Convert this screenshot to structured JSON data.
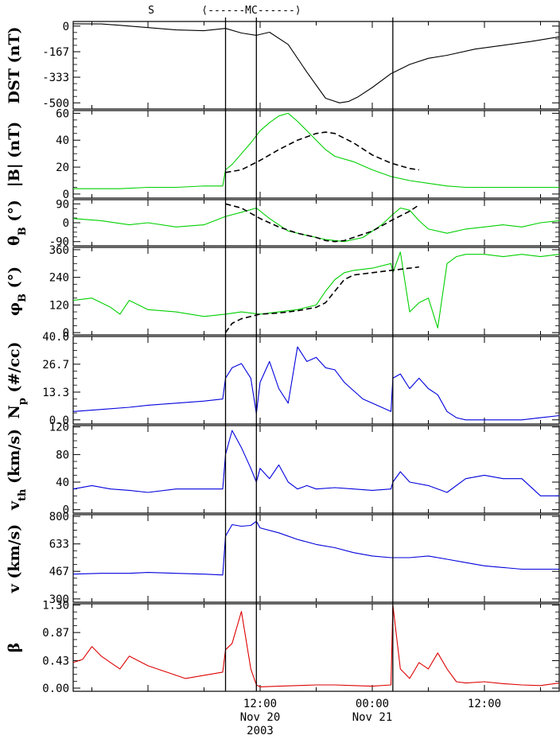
{
  "header": {
    "shock_label": "S",
    "mc_label": "⟨------MC------⟩"
  },
  "x_axis": {
    "tick_labels": [
      {
        "time_h": 12,
        "lines": [
          "12:00",
          "Nov 20",
          "2003"
        ]
      },
      {
        "time_h": 24,
        "lines": [
          "00:00",
          "Nov 21"
        ]
      },
      {
        "time_h": 36,
        "lines": [
          "12:00"
        ]
      }
    ],
    "range_h": [
      -8,
      44
    ],
    "event_lines_h": [
      8.3,
      11.6,
      26.2
    ]
  },
  "chart_data": [
    {
      "type": "line",
      "ylabel": "DST (nT)",
      "ylim": [
        -540,
        30
      ],
      "ytick_labels": [
        "0",
        "-167",
        "-333",
        "-500"
      ],
      "ytick_values": [
        0,
        -167,
        -333,
        -500
      ],
      "series": [
        {
          "color": "#000000",
          "style": "solid",
          "x": [
            -8,
            -5,
            -3,
            0,
            3,
            6,
            8.3,
            10,
            11.6,
            13,
            15,
            17,
            19,
            20.5,
            21.5,
            22.5,
            24,
            26,
            28,
            30,
            32,
            35,
            38,
            41,
            44
          ],
          "y": [
            15,
            14,
            5,
            -10,
            -25,
            -30,
            -15,
            -45,
            -60,
            -40,
            -120,
            -300,
            -470,
            -500,
            -490,
            -460,
            -400,
            -310,
            -250,
            -210,
            -190,
            -150,
            -125,
            -100,
            -70
          ]
        }
      ]
    },
    {
      "type": "line",
      "ylabel": "|B| (nT)",
      "ylim": [
        -3,
        62
      ],
      "ytick_labels": [
        "0",
        "20",
        "40",
        "60"
      ],
      "ytick_values": [
        0,
        20,
        40,
        60
      ],
      "series": [
        {
          "color": "#00d000",
          "style": "solid",
          "x": [
            -8,
            -3,
            0,
            3,
            6,
            8,
            8.3,
            9,
            10,
            11,
            12,
            13,
            14,
            15,
            16,
            17,
            18,
            19,
            20,
            22,
            24,
            26,
            28,
            30,
            32,
            34,
            36,
            38,
            40,
            42,
            44
          ],
          "y": [
            4,
            4,
            5,
            5,
            6,
            6,
            18,
            22,
            30,
            38,
            47,
            53,
            58,
            60,
            54,
            47,
            40,
            33,
            28,
            24,
            18,
            13,
            10,
            8,
            6,
            5,
            5,
            5,
            5,
            5,
            5
          ]
        },
        {
          "color": "#000000",
          "style": "dashed",
          "x": [
            8.3,
            10,
            12,
            14,
            16,
            18,
            19,
            20,
            22,
            24,
            26,
            28,
            29
          ],
          "y": [
            16,
            18,
            25,
            33,
            40,
            45,
            46,
            45,
            38,
            29,
            23,
            19,
            18
          ]
        }
      ]
    },
    {
      "type": "line",
      "ylabel": "θ_B (°)",
      "ylim": [
        -110,
        110
      ],
      "ytick_labels": [
        "90",
        "0",
        "-90"
      ],
      "ytick_values": [
        90,
        0,
        -90
      ],
      "series": [
        {
          "color": "#00d000",
          "style": "solid",
          "x": [
            -8,
            -5,
            -2,
            0,
            3,
            6,
            8.3,
            10,
            11.6,
            13,
            15,
            17,
            19,
            21,
            23,
            25,
            26.2,
            27,
            28,
            29,
            30,
            32,
            34,
            36,
            38,
            40,
            42,
            44
          ],
          "y": [
            20,
            10,
            -10,
            0,
            -20,
            -10,
            30,
            50,
            70,
            20,
            -40,
            -60,
            -80,
            -90,
            -70,
            -10,
            40,
            70,
            60,
            10,
            -30,
            -50,
            -30,
            -20,
            -10,
            -20,
            0,
            10
          ]
        },
        {
          "color": "#000000",
          "style": "dashed",
          "x": [
            8.3,
            10,
            12,
            14,
            16,
            18,
            19,
            20,
            21,
            22,
            24,
            26,
            28,
            29
          ],
          "y": [
            90,
            70,
            20,
            -20,
            -50,
            -70,
            -85,
            -90,
            -85,
            -70,
            -40,
            10,
            55,
            85
          ]
        }
      ]
    },
    {
      "type": "line",
      "ylabel": "φ_B (°)",
      "ylim": [
        -10,
        370
      ],
      "ytick_labels": [
        "360",
        "240",
        "120",
        "0"
      ],
      "ytick_values": [
        360,
        240,
        120,
        0
      ],
      "series": [
        {
          "color": "#00d000",
          "style": "solid",
          "x": [
            -8,
            -6,
            -4,
            -3,
            -2,
            0,
            3,
            6,
            8.3,
            10,
            12,
            14,
            16,
            18,
            19,
            20,
            21,
            22,
            24,
            26,
            26.2,
            27,
            28,
            29,
            30,
            31,
            32,
            33,
            34,
            36,
            38,
            40,
            42,
            44
          ],
          "y": [
            140,
            150,
            110,
            80,
            140,
            100,
            90,
            70,
            80,
            90,
            80,
            90,
            100,
            120,
            180,
            230,
            260,
            270,
            280,
            300,
            260,
            350,
            90,
            130,
            150,
            20,
            300,
            330,
            340,
            340,
            330,
            340,
            330,
            340
          ]
        },
        {
          "color": "#000000",
          "style": "dashed",
          "x": [
            8.3,
            9,
            10,
            12,
            14,
            16,
            18,
            19,
            20,
            21,
            22,
            24,
            26,
            28,
            29
          ],
          "y": [
            0,
            40,
            60,
            80,
            85,
            95,
            110,
            130,
            180,
            230,
            250,
            260,
            270,
            280,
            285
          ]
        }
      ]
    },
    {
      "type": "line",
      "ylabel": "N_p (#/cc)",
      "ylim": [
        -2,
        40
      ],
      "ytick_labels": [
        "40.0",
        "26.7",
        "13.3",
        "0.0"
      ],
      "ytick_values": [
        40.0,
        26.7,
        13.3,
        0.0
      ],
      "series": [
        {
          "color": "#0000dd",
          "style": "solid",
          "x": [
            -8,
            -5,
            -2,
            0,
            3,
            6,
            8,
            8.3,
            9,
            10,
            11,
            11.6,
            12,
            13,
            14,
            15,
            16,
            17,
            18,
            19,
            20,
            21,
            22,
            23,
            24,
            25,
            26,
            26.2,
            27,
            28,
            29,
            30,
            31,
            32,
            33,
            34,
            36,
            38,
            40,
            42,
            44
          ],
          "y": [
            4,
            5,
            6,
            7,
            8,
            9,
            10,
            20,
            25,
            27,
            20,
            3,
            18,
            28,
            15,
            8,
            35,
            28,
            30,
            25,
            24,
            18,
            14,
            10,
            8,
            6,
            4,
            20,
            22,
            15,
            20,
            15,
            12,
            4,
            1,
            0,
            0,
            0,
            0,
            1,
            2
          ]
        }
      ]
    },
    {
      "type": "line",
      "ylabel": "v_th (km/s)",
      "ylim": [
        -5,
        122
      ],
      "ytick_labels": [
        "120",
        "80",
        "40",
        "0"
      ],
      "ytick_values": [
        120,
        80,
        40,
        0
      ],
      "series": [
        {
          "color": "#0000dd",
          "style": "solid",
          "x": [
            -8,
            -6,
            -4,
            -2,
            0,
            3,
            6,
            8,
            8.3,
            9,
            10,
            11,
            11.6,
            12,
            13,
            14,
            15,
            16,
            17,
            18,
            20,
            22,
            24,
            26,
            26.2,
            27,
            28,
            30,
            32,
            34,
            36,
            38,
            40,
            42,
            44
          ],
          "y": [
            30,
            35,
            30,
            28,
            25,
            30,
            30,
            30,
            80,
            115,
            90,
            60,
            40,
            60,
            45,
            65,
            40,
            30,
            35,
            30,
            32,
            30,
            28,
            30,
            40,
            55,
            40,
            35,
            25,
            45,
            50,
            45,
            45,
            20,
            20
          ]
        }
      ]
    },
    {
      "type": "line",
      "ylabel": "v (km/s)",
      "ylim": [
        280,
        810
      ],
      "ytick_labels": [
        "800",
        "633",
        "467",
        "300"
      ],
      "ytick_values": [
        800,
        633,
        467,
        300
      ],
      "series": [
        {
          "color": "#0000dd",
          "style": "solid",
          "x": [
            -8,
            -5,
            -2,
            0,
            3,
            6,
            8,
            8.3,
            9,
            10,
            11,
            11.6,
            12,
            14,
            16,
            18,
            20,
            22,
            24,
            26,
            28,
            30,
            32,
            34,
            36,
            38,
            40,
            42,
            44
          ],
          "y": [
            450,
            455,
            455,
            460,
            455,
            450,
            445,
            680,
            750,
            740,
            745,
            770,
            730,
            700,
            660,
            630,
            610,
            580,
            560,
            550,
            550,
            560,
            540,
            520,
            500,
            490,
            480,
            480,
            480
          ]
        }
      ]
    },
    {
      "type": "line",
      "ylabel": "β",
      "ylim": [
        -0.05,
        1.32
      ],
      "ytick_labels": [
        "1.30",
        "0.87",
        "0.43",
        "0.00"
      ],
      "ytick_values": [
        1.3,
        0.87,
        0.43,
        0.0
      ],
      "series": [
        {
          "color": "#dd0000",
          "style": "solid",
          "x": [
            -8,
            -7,
            -6,
            -5,
            -4,
            -3,
            -2,
            0,
            2,
            4,
            6,
            8,
            8.3,
            9,
            10,
            11,
            11.6,
            12,
            14,
            16,
            18,
            20,
            22,
            24,
            26,
            26.2,
            27,
            28,
            29,
            30,
            31,
            32,
            33,
            34,
            36,
            38,
            40,
            42,
            44
          ],
          "y": [
            0.4,
            0.45,
            0.65,
            0.5,
            0.4,
            0.3,
            0.5,
            0.35,
            0.25,
            0.15,
            0.2,
            0.25,
            0.6,
            0.7,
            1.2,
            0.3,
            0.05,
            0.02,
            0.03,
            0.04,
            0.05,
            0.05,
            0.04,
            0.03,
            0.05,
            1.3,
            0.3,
            0.15,
            0.4,
            0.3,
            0.55,
            0.3,
            0.1,
            0.08,
            0.1,
            0.07,
            0.05,
            0.04,
            0.08
          ]
        }
      ]
    }
  ]
}
